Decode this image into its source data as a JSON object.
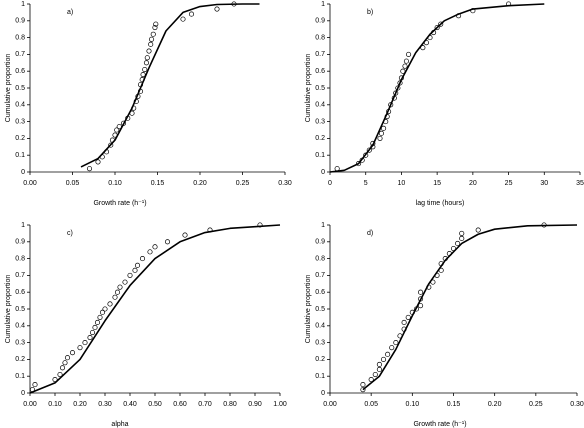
{
  "chart_data": [
    {
      "type": "scatter",
      "annotation": "a)",
      "xlabel": "Growth rate (h⁻¹)",
      "ylabel": "Cumulative proportion",
      "xlim": [
        0,
        0.3
      ],
      "ylim": [
        0,
        1
      ],
      "xticks": [
        {
          "value": 0,
          "label": "0.00"
        },
        {
          "value": 0.05,
          "label": "0.05"
        },
        {
          "value": 0.1,
          "label": "0.10"
        },
        {
          "value": 0.15,
          "label": "0.15"
        },
        {
          "value": 0.2,
          "label": "0.20"
        },
        {
          "value": 0.25,
          "label": "0.25"
        },
        {
          "value": 0.3,
          "label": "0.30"
        }
      ],
      "yticks": [
        0,
        0.1,
        0.2,
        0.3,
        0.4,
        0.5,
        0.6,
        0.7,
        0.8,
        0.9,
        1
      ],
      "series": [
        {
          "type": "scatter",
          "color": "#000000",
          "x": [
            0.07,
            0.08,
            0.085,
            0.09,
            0.095,
            0.097,
            0.1,
            0.102,
            0.105,
            0.11,
            0.115,
            0.12,
            0.122,
            0.125,
            0.127,
            0.13,
            0.13,
            0.132,
            0.133,
            0.135,
            0.137,
            0.138,
            0.14,
            0.142,
            0.143,
            0.145,
            0.147,
            0.148,
            0.18,
            0.19,
            0.22,
            0.24
          ],
          "values": [
            0.02,
            0.06,
            0.09,
            0.12,
            0.16,
            0.19,
            0.22,
            0.25,
            0.27,
            0.29,
            0.32,
            0.35,
            0.38,
            0.42,
            0.45,
            0.48,
            0.52,
            0.55,
            0.58,
            0.61,
            0.65,
            0.68,
            0.72,
            0.76,
            0.79,
            0.82,
            0.86,
            0.88,
            0.91,
            0.94,
            0.97,
            1.0
          ]
        },
        {
          "type": "line",
          "color": "#000000",
          "x": [
            0.06,
            0.08,
            0.1,
            0.12,
            0.13,
            0.14,
            0.16,
            0.18,
            0.2,
            0.22,
            0.25,
            0.27
          ],
          "values": [
            0.03,
            0.08,
            0.19,
            0.38,
            0.5,
            0.62,
            0.84,
            0.95,
            0.985,
            0.997,
            1.0,
            1.0
          ]
        }
      ]
    },
    {
      "type": "scatter",
      "annotation": "b)",
      "xlabel": "lag time (hours)",
      "ylabel": "Cumulative proportion",
      "xlim": [
        0,
        35
      ],
      "ylim": [
        0,
        1
      ],
      "xticks": [
        0,
        5,
        10,
        15,
        20,
        25,
        30,
        35
      ],
      "yticks": [
        0,
        0.1,
        0.2,
        0.3,
        0.4,
        0.5,
        0.6,
        0.7,
        0.8,
        0.9,
        1
      ],
      "series": [
        {
          "type": "scatter",
          "color": "#000000",
          "x": [
            1,
            4,
            4.5,
            5,
            5.5,
            6,
            6,
            7,
            7.2,
            7.5,
            7.8,
            8,
            8.2,
            8.5,
            9,
            9.2,
            9.5,
            9.8,
            10,
            10.2,
            10.5,
            10.7,
            11,
            13,
            13.5,
            14,
            14.5,
            15,
            15.5,
            18,
            20,
            25
          ],
          "values": [
            0.02,
            0.05,
            0.07,
            0.1,
            0.13,
            0.15,
            0.17,
            0.2,
            0.23,
            0.26,
            0.3,
            0.33,
            0.36,
            0.4,
            0.44,
            0.47,
            0.5,
            0.53,
            0.56,
            0.6,
            0.63,
            0.66,
            0.7,
            0.74,
            0.77,
            0.8,
            0.83,
            0.86,
            0.88,
            0.93,
            0.96,
            1.0
          ]
        },
        {
          "type": "line",
          "color": "#000000",
          "x": [
            0,
            2,
            4,
            6,
            8,
            10,
            12,
            14,
            16,
            18,
            20,
            25,
            30
          ],
          "values": [
            0,
            0.01,
            0.05,
            0.16,
            0.35,
            0.55,
            0.71,
            0.82,
            0.9,
            0.94,
            0.97,
            0.99,
            1.0
          ]
        }
      ]
    },
    {
      "type": "scatter",
      "annotation": "c)",
      "xlabel": "alpha",
      "ylabel": "Cumulative proportion",
      "xlim": [
        0,
        1
      ],
      "ylim": [
        0,
        1
      ],
      "xticks": [
        {
          "value": 0,
          "label": "0.00"
        },
        {
          "value": 0.1,
          "label": "0.10"
        },
        {
          "value": 0.2,
          "label": "0.20"
        },
        {
          "value": 0.3,
          "label": "0.30"
        },
        {
          "value": 0.4,
          "label": "0.40"
        },
        {
          "value": 0.5,
          "label": "0.50"
        },
        {
          "value": 0.6,
          "label": "0.60"
        },
        {
          "value": 0.7,
          "label": "0.70"
        },
        {
          "value": 0.8,
          "label": "0.80"
        },
        {
          "value": 0.9,
          "label": "0.90"
        },
        {
          "value": 1,
          "label": "1.00"
        }
      ],
      "yticks": [
        0,
        0.1,
        0.2,
        0.3,
        0.4,
        0.5,
        0.6,
        0.7,
        0.8,
        0.9,
        1
      ],
      "series": [
        {
          "type": "scatter",
          "color": "#000000",
          "x": [
            0.01,
            0.02,
            0.1,
            0.12,
            0.13,
            0.14,
            0.15,
            0.17,
            0.2,
            0.22,
            0.24,
            0.25,
            0.26,
            0.27,
            0.28,
            0.29,
            0.3,
            0.32,
            0.34,
            0.35,
            0.36,
            0.38,
            0.4,
            0.42,
            0.43,
            0.45,
            0.48,
            0.5,
            0.55,
            0.62,
            0.72,
            0.92
          ],
          "values": [
            0.02,
            0.05,
            0.08,
            0.11,
            0.15,
            0.18,
            0.21,
            0.24,
            0.27,
            0.3,
            0.33,
            0.36,
            0.39,
            0.42,
            0.45,
            0.48,
            0.5,
            0.53,
            0.57,
            0.6,
            0.63,
            0.66,
            0.7,
            0.73,
            0.76,
            0.8,
            0.84,
            0.87,
            0.9,
            0.94,
            0.97,
            1.0
          ]
        },
        {
          "type": "line",
          "color": "#000000",
          "x": [
            0,
            0.1,
            0.2,
            0.3,
            0.4,
            0.5,
            0.6,
            0.7,
            0.8,
            0.9,
            1.0
          ],
          "values": [
            0,
            0.06,
            0.2,
            0.43,
            0.64,
            0.8,
            0.9,
            0.955,
            0.98,
            0.99,
            1.0
          ]
        }
      ]
    },
    {
      "type": "scatter",
      "annotation": "d)",
      "xlabel": "Growth rate (h⁻¹)",
      "ylabel": "Cumulative proportion",
      "xlim": [
        0,
        0.3
      ],
      "ylim": [
        0,
        1
      ],
      "xticks": [
        {
          "value": 0,
          "label": "0.00"
        },
        {
          "value": 0.05,
          "label": "0.05"
        },
        {
          "value": 0.1,
          "label": "0.10"
        },
        {
          "value": 0.15,
          "label": "0.15"
        },
        {
          "value": 0.2,
          "label": "0.20"
        },
        {
          "value": 0.25,
          "label": "0.25"
        },
        {
          "value": 0.3,
          "label": "0.30"
        }
      ],
      "yticks": [
        0,
        0.1,
        0.2,
        0.3,
        0.4,
        0.5,
        0.6,
        0.7,
        0.8,
        0.9,
        1
      ],
      "series": [
        {
          "type": "scatter",
          "color": "#000000",
          "x": [
            0.04,
            0.04,
            0.05,
            0.055,
            0.06,
            0.06,
            0.065,
            0.07,
            0.075,
            0.08,
            0.085,
            0.09,
            0.09,
            0.095,
            0.1,
            0.105,
            0.11,
            0.11,
            0.11,
            0.12,
            0.125,
            0.13,
            0.135,
            0.135,
            0.14,
            0.145,
            0.15,
            0.155,
            0.16,
            0.16,
            0.18,
            0.26
          ],
          "values": [
            0.02,
            0.05,
            0.08,
            0.11,
            0.14,
            0.17,
            0.2,
            0.23,
            0.27,
            0.3,
            0.34,
            0.38,
            0.42,
            0.45,
            0.48,
            0.5,
            0.52,
            0.56,
            0.6,
            0.63,
            0.66,
            0.7,
            0.73,
            0.77,
            0.8,
            0.83,
            0.86,
            0.89,
            0.92,
            0.95,
            0.97,
            1.0
          ]
        },
        {
          "type": "line",
          "color": "#000000",
          "x": [
            0.04,
            0.06,
            0.08,
            0.1,
            0.12,
            0.14,
            0.16,
            0.18,
            0.2,
            0.24,
            0.3
          ],
          "values": [
            0.02,
            0.1,
            0.26,
            0.46,
            0.65,
            0.79,
            0.89,
            0.945,
            0.975,
            0.995,
            1.0
          ]
        }
      ]
    }
  ]
}
